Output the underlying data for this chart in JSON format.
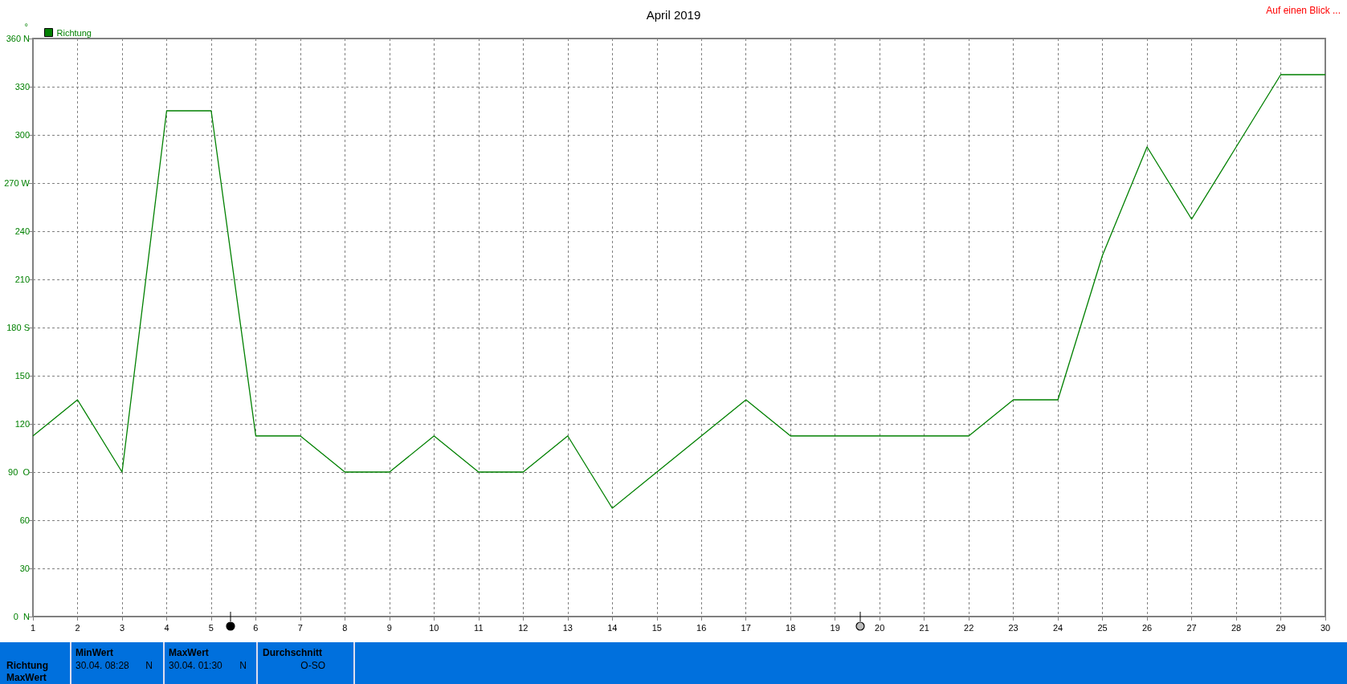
{
  "chart_data": {
    "type": "line",
    "title": "April 2019",
    "ylabel": "°",
    "x": [
      1,
      2,
      3,
      4,
      5,
      6,
      7,
      8,
      9,
      10,
      11,
      12,
      13,
      14,
      15,
      16,
      17,
      18,
      19,
      20,
      21,
      22,
      23,
      24,
      25,
      26,
      27,
      28,
      29,
      30
    ],
    "series": [
      {
        "name": "Richtung",
        "color": "#008000",
        "values": [
          112.5,
          135,
          90,
          315,
          315,
          112.5,
          112.5,
          90,
          90,
          112.5,
          90,
          90,
          112.5,
          67.5,
          90,
          112.5,
          135,
          112.5,
          112.5,
          112.5,
          112.5,
          112.5,
          135,
          135,
          225,
          292.5,
          247.5,
          292.5,
          337.5,
          337.5
        ]
      }
    ],
    "xlim": [
      1,
      30
    ],
    "xticks": [
      1,
      2,
      3,
      4,
      5,
      6,
      7,
      8,
      9,
      10,
      11,
      12,
      13,
      14,
      15,
      16,
      17,
      18,
      19,
      20,
      21,
      22,
      23,
      24,
      25,
      26,
      27,
      28,
      29,
      30
    ],
    "ylim": [
      0,
      360
    ],
    "yticks": [
      {
        "value": 0,
        "label": "0  N"
      },
      30,
      60,
      {
        "value": 90,
        "label": "90  O"
      },
      120,
      150,
      {
        "value": 180,
        "label": "180 S"
      },
      210,
      240,
      {
        "value": 270,
        "label": "270 W"
      },
      300,
      330,
      {
        "value": 360,
        "label": "360 N"
      }
    ],
    "grid": true,
    "legend": "top left",
    "marker": "none",
    "line_style": "solid",
    "annotations": [
      "Auf einen Blick ...",
      "Richtung",
      "MaxWert",
      "MinWert",
      "30.04.  08:28",
      "N",
      "MaxWert",
      "30.04.  01:30",
      "N",
      "Durchschnitt",
      "O-SO"
    ]
  }
}
